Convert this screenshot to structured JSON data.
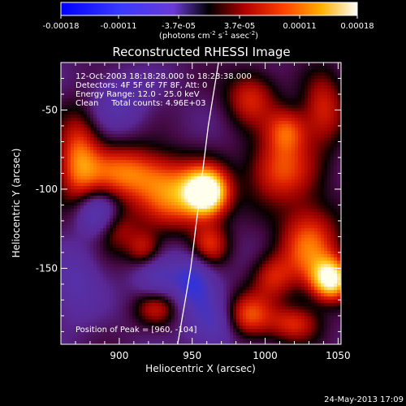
{
  "chart_data": {
    "type": "heatmap",
    "title": "Reconstructed RHESSI Image",
    "xlabel": "Heliocentric X (arcsec)",
    "ylabel": "Heliocentric Y (arcsec)",
    "xlim": [
      860,
      1052
    ],
    "ylim": [
      -198,
      -20
    ],
    "xticks": [
      900,
      950,
      1000,
      1050
    ],
    "yticks": [
      -50,
      -100,
      -150
    ],
    "colorbar": {
      "ticks": [
        "-0.00018",
        "-0.00011",
        "-3.7e-05",
        "3.7e-05",
        "0.00011",
        "0.00018"
      ],
      "range": [
        -0.00018,
        0.00018
      ],
      "unit_main": "(photons cm",
      "unit_exp1": "-2",
      "unit_mid": " s",
      "unit_exp2": "-1",
      "unit_end": " asec",
      "unit_exp3": "-2",
      "unit_close": ")"
    },
    "annotations": [
      "12-Oct-2003 18:18:28.000 to 18:23:38.000",
      "Detectors: 4F 5F 6F 7F 8F, Att: 0",
      "Energy Range: 12.0 - 25.0 keV",
      "Clean     Total counts: 4.96E+03"
    ],
    "peak_label": "Position of Peak = [960, -104]",
    "peak": {
      "x": 960,
      "y": -104
    },
    "limb_line": [
      [
        940,
        -198
      ],
      [
        949,
        -150
      ],
      [
        955,
        -105
      ],
      [
        961,
        -60
      ],
      [
        968,
        -20
      ]
    ],
    "blobs": [
      {
        "x": 960,
        "y": -102,
        "sx": 10,
        "sy": 10,
        "a": 1.0
      },
      {
        "x": 940,
        "y": -105,
        "sx": 18,
        "sy": 14,
        "a": 0.55
      },
      {
        "x": 1045,
        "y": -157,
        "sx": 9,
        "sy": 9,
        "a": 0.9
      },
      {
        "x": 1030,
        "y": -135,
        "sx": 14,
        "sy": 18,
        "a": 0.55
      },
      {
        "x": 905,
        "y": -90,
        "sx": 22,
        "sy": 12,
        "a": 0.55
      },
      {
        "x": 872,
        "y": -80,
        "sx": 10,
        "sy": 20,
        "a": 0.5
      },
      {
        "x": 1010,
        "y": -88,
        "sx": 16,
        "sy": 14,
        "a": 0.48
      },
      {
        "x": 1015,
        "y": -63,
        "sx": 10,
        "sy": 10,
        "a": 0.45
      },
      {
        "x": 990,
        "y": -42,
        "sx": 12,
        "sy": 12,
        "a": 0.4
      },
      {
        "x": 1040,
        "y": -50,
        "sx": 10,
        "sy": 16,
        "a": 0.4
      },
      {
        "x": 988,
        "y": -180,
        "sx": 12,
        "sy": 10,
        "a": 0.5
      },
      {
        "x": 1005,
        "y": -155,
        "sx": 10,
        "sy": 10,
        "a": 0.35
      },
      {
        "x": 1020,
        "y": -185,
        "sx": 12,
        "sy": 8,
        "a": 0.4
      },
      {
        "x": 925,
        "y": -175,
        "sx": 10,
        "sy": 8,
        "a": 0.35
      },
      {
        "x": 962,
        "y": -135,
        "sx": 9,
        "sy": 9,
        "a": 0.4
      },
      {
        "x": 917,
        "y": -138,
        "sx": 8,
        "sy": 8,
        "a": 0.35
      },
      {
        "x": 898,
        "y": -125,
        "sx": 10,
        "sy": 10,
        "a": 0.3
      },
      {
        "x": 950,
        "y": -158,
        "sx": 10,
        "sy": 12,
        "a": -0.45
      },
      {
        "x": 925,
        "y": -157,
        "sx": 10,
        "sy": 10,
        "a": -0.3
      },
      {
        "x": 885,
        "y": -115,
        "sx": 10,
        "sy": 10,
        "a": -0.4
      },
      {
        "x": 900,
        "y": -45,
        "sx": 14,
        "sy": 12,
        "a": -0.25
      },
      {
        "x": 965,
        "y": -185,
        "sx": 12,
        "sy": 12,
        "a": -0.35
      },
      {
        "x": 870,
        "y": -160,
        "sx": 12,
        "sy": 16,
        "a": -0.25
      }
    ]
  },
  "footer": {
    "timestamp": "24-May-2013 17:09"
  }
}
